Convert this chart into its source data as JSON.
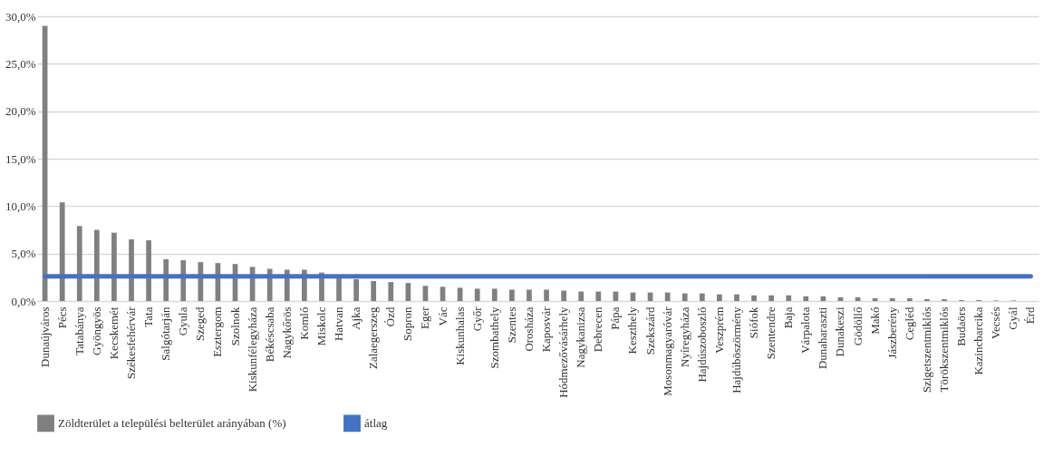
{
  "chart_data": {
    "type": "bar",
    "categories": [
      "Dunaújváros",
      "Pécs",
      "Tatabánya",
      "Gyöngyös",
      "Kecskemét",
      "Székesfehérvár",
      "Tata",
      "Salgótarján",
      "Gyula",
      "Szeged",
      "Esztergom",
      "Szolnok",
      "Kiskunfélegyháza",
      "Békéscsaba",
      "Nagykőrös",
      "Komló",
      "Miskolc",
      "Hatvan",
      "Ajka",
      "Zalaegerszeg",
      "Ózd",
      "Sopron",
      "Eger",
      "Vác",
      "Kiskunhalas",
      "Győr",
      "Szombathely",
      "Szentes",
      "Orosháza",
      "Kaposvár",
      "Hódmezővásárhely",
      "Nagykanizsa",
      "Debrecen",
      "Pápa",
      "Keszthely",
      "Szekszárd",
      "Mosonmagyaróvár",
      "Nyíregyháza",
      "Hajdúszoboszló",
      "Veszprém",
      "Hajdúböszörmény",
      "Siófok",
      "Szentendre",
      "Baja",
      "Várpalota",
      "Dunaharaszti",
      "Dunakeszi",
      "Gödöllő",
      "Makó",
      "Jászberény",
      "Cegléd",
      "Szigetszentmiklós",
      "Törökszentmiklós",
      "Budaörs",
      "Kazincbarcika",
      "Vecsés",
      "Gyál",
      "Érd"
    ],
    "series": [
      {
        "name": "Zöldterület a települési belterület arányában (%)",
        "color": "#808080",
        "values": [
          29.0,
          10.4,
          7.9,
          7.5,
          7.2,
          6.5,
          6.4,
          4.4,
          4.3,
          4.1,
          4.0,
          3.9,
          3.6,
          3.4,
          3.3,
          3.3,
          3.0,
          2.6,
          2.3,
          2.1,
          2.0,
          1.9,
          1.6,
          1.5,
          1.4,
          1.3,
          1.3,
          1.2,
          1.2,
          1.2,
          1.1,
          1.0,
          1.0,
          1.0,
          0.9,
          0.9,
          0.9,
          0.8,
          0.8,
          0.7,
          0.7,
          0.6,
          0.6,
          0.6,
          0.5,
          0.5,
          0.4,
          0.4,
          0.3,
          0.3,
          0.3,
          0.2,
          0.2,
          0.1,
          0.1,
          0.05,
          0.05,
          null
        ]
      },
      {
        "name": "átlag",
        "type": "line",
        "color": "#4472c4",
        "values": [
          2.6,
          2.6,
          2.6,
          2.6,
          2.6,
          2.6,
          2.6,
          2.6,
          2.6,
          2.6,
          2.6,
          2.6,
          2.6,
          2.6,
          2.6,
          2.6,
          2.6,
          2.6,
          2.6,
          2.6,
          2.6,
          2.6,
          2.6,
          2.6,
          2.6,
          2.6,
          2.6,
          2.6,
          2.6,
          2.6,
          2.6,
          2.6,
          2.6,
          2.6,
          2.6,
          2.6,
          2.6,
          2.6,
          2.6,
          2.6,
          2.6,
          2.6,
          2.6,
          2.6,
          2.6,
          2.6,
          2.6,
          2.6,
          2.6,
          2.6,
          2.6,
          2.6,
          2.6,
          2.6,
          2.6,
          2.6,
          2.6,
          2.6
        ]
      }
    ],
    "ylim": [
      0,
      30
    ],
    "yticks": [
      {
        "value": 0,
        "label": "0,0%"
      },
      {
        "value": 5,
        "label": "5,0%"
      },
      {
        "value": 10,
        "label": "10,0%"
      },
      {
        "value": 15,
        "label": "15,0%"
      },
      {
        "value": 20,
        "label": "20,0%"
      },
      {
        "value": 25,
        "label": "25,0%"
      },
      {
        "value": 30,
        "label": "30,0%"
      }
    ],
    "grid": "y",
    "legend": "bottom"
  }
}
